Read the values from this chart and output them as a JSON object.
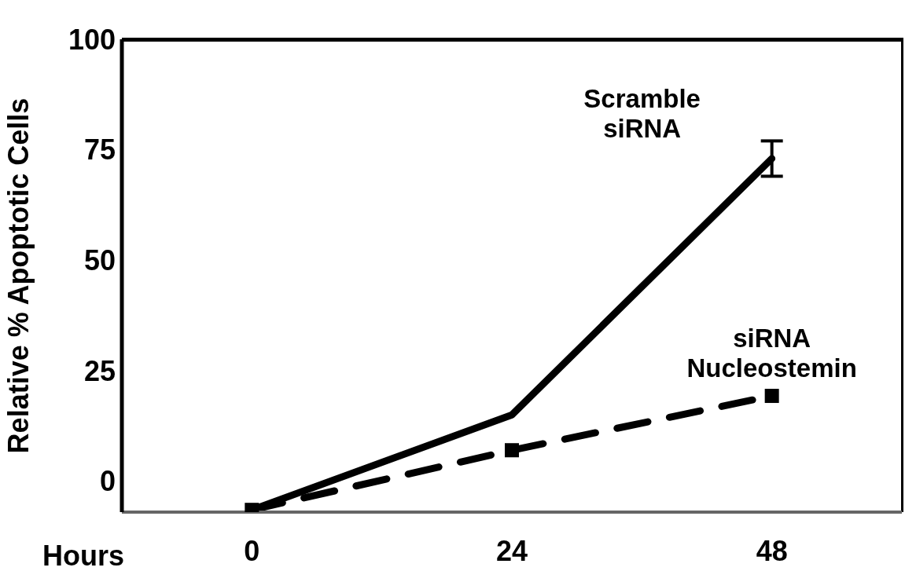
{
  "chart_data": {
    "type": "line",
    "xlabel": "Hours",
    "ylabel": "Relative % Apoptotic Cells",
    "categories": [
      "0",
      "24",
      "48"
    ],
    "series": [
      {
        "name": "Scramble siRNA",
        "color": "#000000",
        "values": [
          -6.5,
          15,
          73
        ],
        "errors": [
          null,
          null,
          4
        ],
        "line_style": "solid",
        "marker": "none"
      },
      {
        "name": "siRNA Nucleostemin",
        "color": "#000000",
        "values": [
          -6.5,
          7,
          19.3
        ],
        "line_style": "dashed",
        "marker": "square"
      }
    ],
    "ylim": [
      -7,
      100
    ],
    "yticks": [
      0,
      25,
      50,
      75,
      100
    ],
    "grid": false,
    "legend": false
  }
}
